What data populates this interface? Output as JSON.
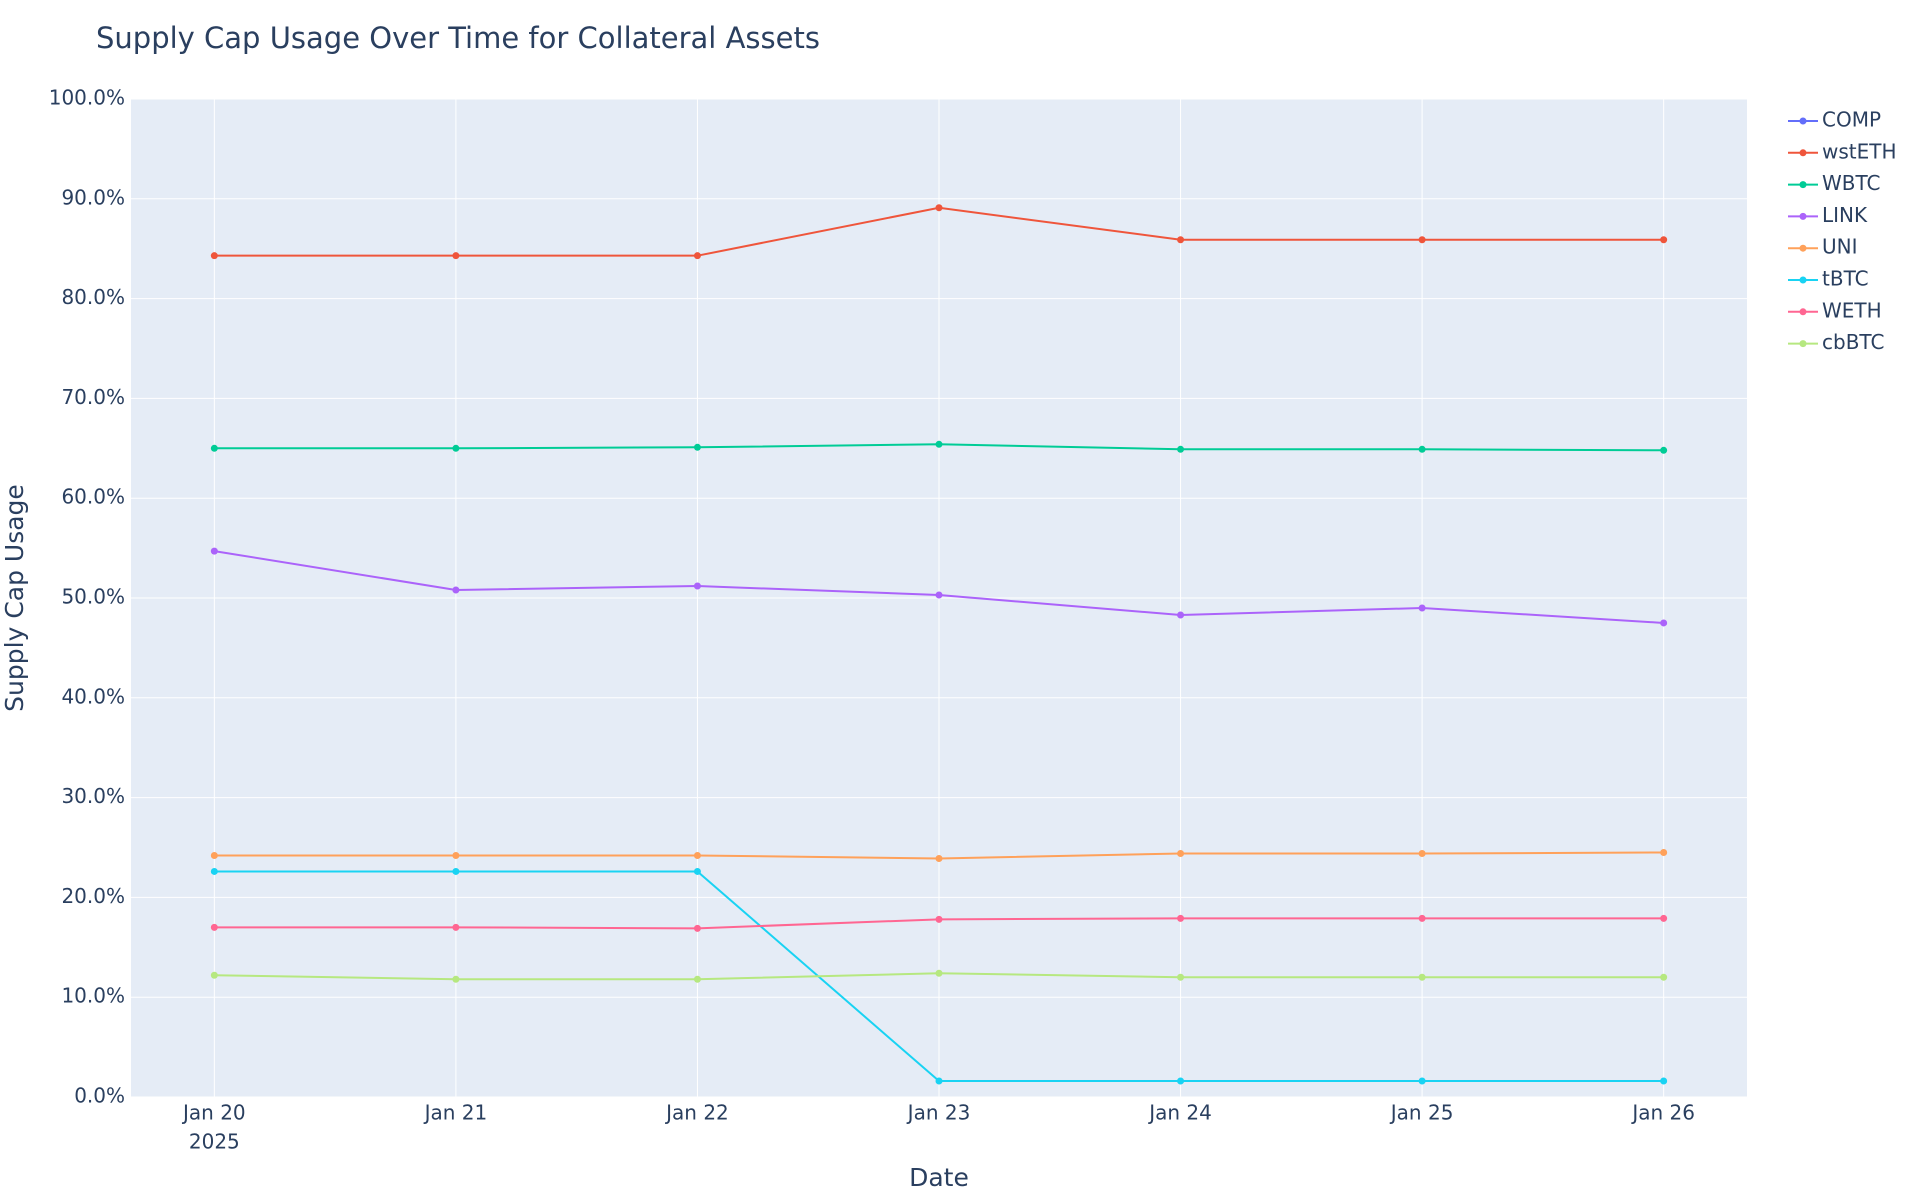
{
  "chart_data": {
    "type": "line",
    "title": "Supply Cap Usage Over Time for Collateral Assets",
    "x_label": "Date",
    "y_label": "Supply Cap Usage",
    "categories": [
      "Jan 20",
      "Jan 21",
      "Jan 22",
      "Jan 23",
      "Jan 24",
      "Jan 25",
      "Jan 26"
    ],
    "year_label": "2025",
    "ylim": [
      0,
      100
    ],
    "yticks": [
      {
        "value": 0,
        "label": "0.0%"
      },
      {
        "value": 10,
        "label": "10.0%"
      },
      {
        "value": 20,
        "label": "20.0%"
      },
      {
        "value": 30,
        "label": "30.0%"
      },
      {
        "value": 40,
        "label": "40.0%"
      },
      {
        "value": 50,
        "label": "50.0%"
      },
      {
        "value": 60,
        "label": "60.0%"
      },
      {
        "value": 70,
        "label": "70.0%"
      },
      {
        "value": 80,
        "label": "80.0%"
      },
      {
        "value": 90,
        "label": "90.0%"
      },
      {
        "value": 100,
        "label": "100.0%"
      }
    ],
    "grid": true,
    "legend": "right",
    "series": [
      {
        "name": "COMP",
        "color": "#636efa",
        "values": [
          null,
          null,
          null,
          null,
          null,
          null,
          null
        ]
      },
      {
        "name": "wstETH",
        "color": "#EF553B",
        "values": [
          84.3,
          84.3,
          84.3,
          89.1,
          85.9,
          85.9,
          85.9
        ]
      },
      {
        "name": "WBTC",
        "color": "#00cc96",
        "values": [
          65.0,
          65.0,
          65.1,
          65.4,
          64.9,
          64.9,
          64.8
        ]
      },
      {
        "name": "LINK",
        "color": "#ab63fa",
        "values": [
          54.7,
          50.8,
          51.2,
          50.3,
          48.3,
          49.0,
          47.5
        ]
      },
      {
        "name": "UNI",
        "color": "#FFA15A",
        "values": [
          24.2,
          24.2,
          24.2,
          23.9,
          24.4,
          24.4,
          24.5
        ]
      },
      {
        "name": "tBTC",
        "color": "#19d3f3",
        "values": [
          22.6,
          22.6,
          22.6,
          1.6,
          1.6,
          1.6,
          1.6
        ]
      },
      {
        "name": "WETH",
        "color": "#FF6692",
        "values": [
          17.0,
          17.0,
          16.9,
          17.8,
          17.9,
          17.9,
          17.9
        ]
      },
      {
        "name": "cbBTC",
        "color": "#B6E880",
        "values": [
          12.2,
          11.8,
          11.8,
          12.4,
          12.0,
          12.0,
          12.0
        ]
      }
    ]
  }
}
